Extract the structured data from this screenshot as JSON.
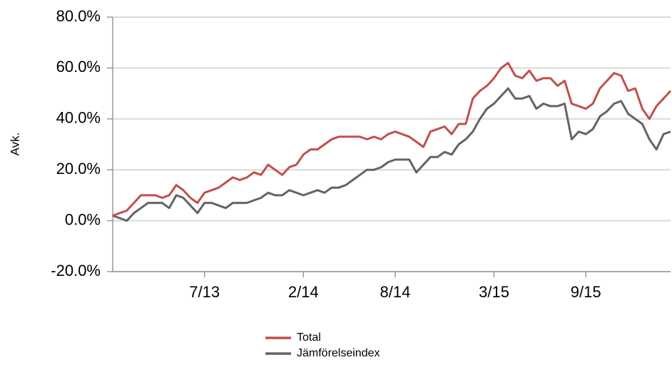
{
  "chart_data": {
    "type": "line",
    "y_label": "Avk.",
    "categories": [
      null,
      null,
      null,
      null,
      null,
      null,
      null,
      null,
      null,
      null,
      null,
      null,
      null,
      "7/13",
      null,
      null,
      null,
      null,
      null,
      null,
      null,
      null,
      null,
      null,
      null,
      null,
      null,
      "2/14",
      null,
      null,
      null,
      null,
      null,
      null,
      null,
      null,
      null,
      null,
      null,
      null,
      "8/14",
      null,
      null,
      null,
      null,
      null,
      null,
      null,
      null,
      null,
      null,
      null,
      null,
      null,
      "3/15",
      null,
      null,
      null,
      null,
      null,
      null,
      null,
      null,
      null,
      null,
      null,
      null,
      "9/15",
      null,
      null,
      null,
      null,
      null,
      null,
      null,
      null,
      null,
      null,
      null,
      null
    ],
    "series": [
      {
        "name": "Total",
        "color": "#c0504d",
        "values": [
          2,
          3,
          4,
          7,
          10,
          10,
          10,
          9,
          10,
          14,
          12,
          9,
          7,
          11,
          12,
          13,
          15,
          17,
          16,
          17,
          19,
          18,
          22,
          20,
          18,
          21,
          22,
          26,
          28,
          28,
          30,
          32,
          33,
          33,
          33,
          33,
          32,
          33,
          32,
          34,
          35,
          34,
          33,
          31,
          29,
          35,
          36,
          37,
          34,
          38,
          38,
          48,
          51,
          53,
          56,
          60,
          62,
          57,
          56,
          59,
          55,
          56,
          56,
          53,
          55,
          46,
          45,
          44,
          46,
          52,
          55,
          58,
          57,
          51,
          52,
          44,
          40,
          45,
          48,
          51
        ]
      },
      {
        "name": "Jämförelseindex",
        "color": "#646464",
        "values": [
          2,
          1,
          0,
          3,
          5,
          7,
          7,
          7,
          5,
          10,
          9,
          6,
          3,
          7,
          7,
          6,
          5,
          7,
          7,
          7,
          8,
          9,
          11,
          10,
          10,
          12,
          11,
          10,
          11,
          12,
          11,
          13,
          13,
          14,
          16,
          18,
          20,
          20,
          21,
          23,
          24,
          24,
          24,
          19,
          22,
          25,
          25,
          27,
          26,
          30,
          32,
          35,
          40,
          44,
          46,
          49,
          52,
          48,
          48,
          49,
          44,
          46,
          45,
          45,
          46,
          32,
          35,
          34,
          36,
          41,
          43,
          46,
          47,
          42,
          40,
          38,
          32,
          28,
          34,
          35
        ]
      }
    ],
    "ylim": [
      -20,
      80
    ],
    "yticks": [
      {
        "value": -20,
        "label": "-20.0%"
      },
      {
        "value": 0,
        "label": "0.0%"
      },
      {
        "value": 20,
        "label": "20.0%"
      },
      {
        "value": 40,
        "label": "40.0%"
      },
      {
        "value": 60,
        "label": "60.0%"
      },
      {
        "value": 80,
        "label": "80.0%"
      }
    ],
    "grid": true,
    "legend": "bottom"
  }
}
